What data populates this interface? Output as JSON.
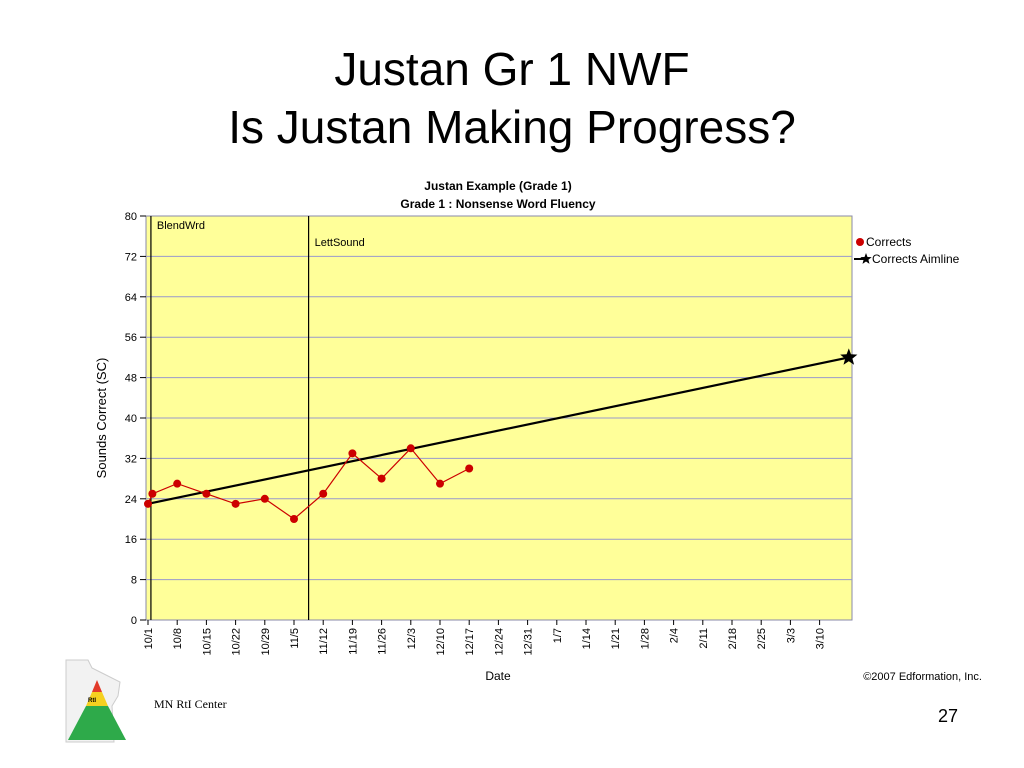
{
  "slide": {
    "title_line1": "Justan Gr 1 NWF",
    "title_line2": "Is Justan Making Progress?",
    "footer_text": "MN RtI Center",
    "page_number": "27",
    "logo_text": "RtI"
  },
  "chart_data": {
    "type": "line",
    "title": "Justan Example (Grade 1)",
    "subtitle": "Grade 1 : Nonsense Word Fluency",
    "xlabel": "Date",
    "ylabel": "Sounds Correct (SC)",
    "ylim": [
      0,
      80
    ],
    "yticks": [
      0,
      8,
      16,
      24,
      32,
      40,
      48,
      56,
      64,
      72,
      80
    ],
    "xticks": [
      "10/1",
      "10/8",
      "10/15",
      "10/22",
      "10/29",
      "11/5",
      "11/12",
      "11/19",
      "11/26",
      "12/3",
      "12/10",
      "12/17",
      "12/24",
      "12/31",
      "1/7",
      "1/14",
      "1/21",
      "1/28",
      "2/4",
      "2/11",
      "2/18",
      "2/25",
      "3/3",
      "3/10"
    ],
    "grid": "horizontal",
    "background_color": "#ffff99",
    "legend_position": "right",
    "phase_lines": [
      {
        "label": "BlendWrd",
        "week": 0.1
      },
      {
        "label": "LettSound",
        "week": 5.5
      }
    ],
    "series": [
      {
        "name": "Corrects",
        "color": "#cc0000",
        "marker": "circle",
        "points": [
          {
            "week": 0.0,
            "value": 23
          },
          {
            "week": 0.15,
            "value": 25
          },
          {
            "week": 1.0,
            "value": 27
          },
          {
            "week": 2.0,
            "value": 25
          },
          {
            "week": 3.0,
            "value": 23
          },
          {
            "week": 4.0,
            "value": 24
          },
          {
            "week": 5.0,
            "value": 20
          },
          {
            "week": 6.0,
            "value": 25
          },
          {
            "week": 7.0,
            "value": 33
          },
          {
            "week": 8.0,
            "value": 28
          },
          {
            "week": 9.0,
            "value": 34
          },
          {
            "week": 10.0,
            "value": 27
          },
          {
            "week": 11.0,
            "value": 30
          }
        ]
      },
      {
        "name": "Corrects Aimline",
        "color": "#000000",
        "marker": "star",
        "points": [
          {
            "week": 0.0,
            "value": 23
          },
          {
            "week": 24.0,
            "value": 52
          }
        ]
      }
    ],
    "copyright": "©2007 Edformation, Inc."
  }
}
